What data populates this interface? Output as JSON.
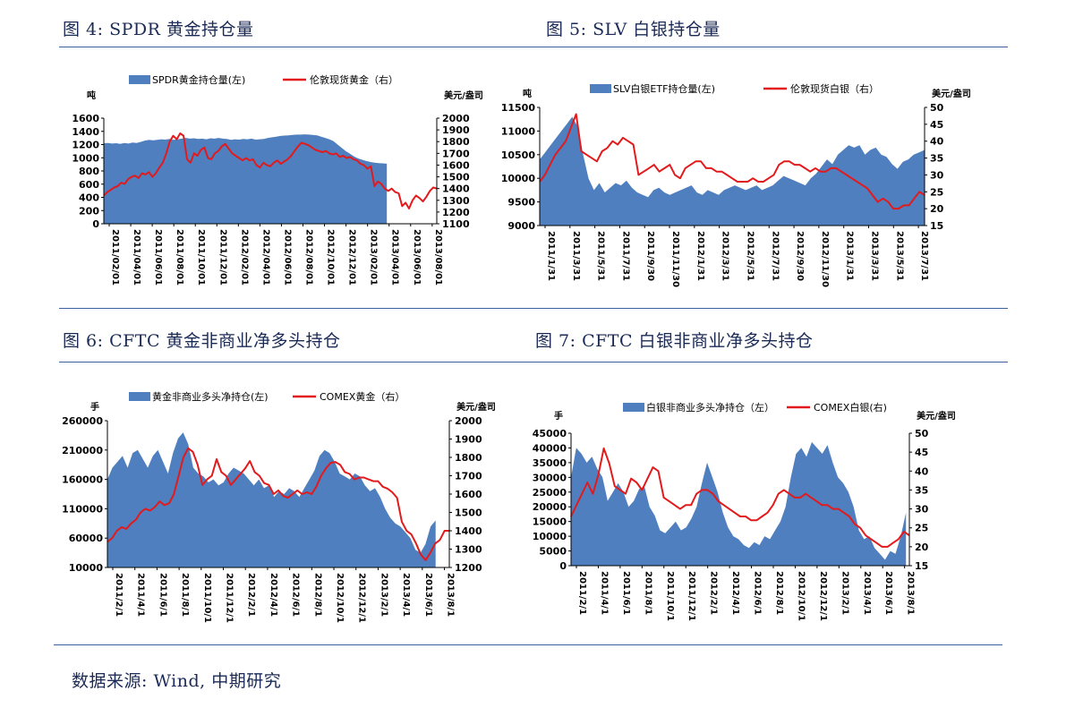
{
  "figures": {
    "f4": "图 4: SPDR 黄金持仓量",
    "f5": "图 5: SLV 白银持仓量",
    "f6": "图 6: CFTC 黄金非商业净多头持仓",
    "f7": "图 7: CFTC 白银非商业净多头持仓"
  },
  "source": "数据来源: Wind, 中期研究",
  "colors": {
    "area": "#4f7fbf",
    "line": "#e31a1c",
    "title": "#1b2a55",
    "rule": "#3c5fa0"
  },
  "chart_data": [
    {
      "type": "area",
      "legend": [
        "SPDR黄金持仓量(左)",
        "伦敦现货黄金（右）"
      ],
      "y_unit": "吨",
      "y2_unit": "美元/盎司",
      "ylim": [
        0,
        1600
      ],
      "y2lim": [
        1100,
        2000
      ],
      "y_ticks": [
        "0",
        "200",
        "400",
        "600",
        "800",
        "1000",
        "1200",
        "1400",
        "1600"
      ],
      "y2_ticks": [
        "1100",
        "1200",
        "1300",
        "1400",
        "1500",
        "1600",
        "1700",
        "1800",
        "1900",
        "2000"
      ],
      "x_ticks": [
        "2011/02/01",
        "2011/04/01",
        "2011/06/01",
        "2011/08/01",
        "2011/10/01",
        "2011/12/01",
        "2012/02/01",
        "2012/04/01",
        "2012/06/01",
        "2012/08/01",
        "2012/10/01",
        "2012/12/01",
        "2013/02/01",
        "2013/04/01",
        "2013/06/01",
        "2013/08/01"
      ],
      "series": [
        {
          "name": "SPDR黄金持仓量(左)",
          "axis": "left",
          "style": "area",
          "end_t": 0.85,
          "values": [
            1220,
            1225,
            1215,
            1220,
            1210,
            1225,
            1215,
            1230,
            1225,
            1240,
            1260,
            1270,
            1265,
            1270,
            1280,
            1275,
            1285,
            1270,
            1280,
            1290,
            1300,
            1290,
            1295,
            1285,
            1290,
            1280,
            1295,
            1290,
            1300,
            1290,
            1285,
            1270,
            1280,
            1275,
            1285,
            1280,
            1290,
            1275,
            1280,
            1285,
            1300,
            1310,
            1320,
            1330,
            1335,
            1340,
            1345,
            1350,
            1350,
            1355,
            1350,
            1345,
            1340,
            1320,
            1300,
            1280,
            1250,
            1200,
            1150,
            1100,
            1060,
            1020,
            990,
            970,
            950,
            935,
            925,
            920,
            915,
            910
          ]
        },
        {
          "name": "伦敦现货黄金（右）",
          "axis": "right",
          "style": "line",
          "end_t": 1.0,
          "values": [
            1340,
            1370,
            1390,
            1410,
            1420,
            1450,
            1440,
            1480,
            1500,
            1510,
            1490,
            1530,
            1520,
            1540,
            1500,
            1530,
            1580,
            1620,
            1700,
            1800,
            1850,
            1820,
            1870,
            1850,
            1650,
            1620,
            1700,
            1680,
            1730,
            1750,
            1660,
            1650,
            1700,
            1720,
            1760,
            1780,
            1740,
            1700,
            1680,
            1660,
            1640,
            1660,
            1640,
            1650,
            1600,
            1580,
            1620,
            1600,
            1590,
            1620,
            1640,
            1610,
            1630,
            1650,
            1680,
            1720,
            1760,
            1790,
            1780,
            1770,
            1750,
            1730,
            1720,
            1710,
            1720,
            1700,
            1690,
            1700,
            1670,
            1680,
            1660,
            1670,
            1650,
            1640,
            1610,
            1600,
            1570,
            1590,
            1420,
            1460,
            1440,
            1400,
            1380,
            1400,
            1370,
            1360,
            1250,
            1280,
            1230,
            1300,
            1340,
            1320,
            1290,
            1330,
            1380,
            1410,
            1400
          ]
        }
      ]
    },
    {
      "type": "area",
      "legend": [
        "SLV白银ETF持仓量(左)",
        "伦敦现货白银（右）"
      ],
      "y_unit": "吨",
      "y2_unit": "美元/盎司",
      "ylim": [
        9000,
        11500
      ],
      "y2lim": [
        15,
        50
      ],
      "y_ticks": [
        "9000",
        "9500",
        "10000",
        "10500",
        "11000",
        "11500"
      ],
      "y2_ticks": [
        "15",
        "20",
        "25",
        "30",
        "35",
        "40",
        "45",
        "50"
      ],
      "x_ticks": [
        "2011/1/31",
        "2011/3/31",
        "2011/5/31",
        "2011/7/31",
        "2011/9/30",
        "2011/11/30",
        "2012/1/31",
        "2012/3/31",
        "2012/5/31",
        "2012/7/31",
        "2012/9/30",
        "2012/11/30",
        "2013/1/31",
        "2013/3/31",
        "2013/5/31",
        "2013/7/31"
      ],
      "series": [
        {
          "name": "SLV白银ETF持仓量(左)",
          "axis": "left",
          "style": "area",
          "end_t": 1.0,
          "values": [
            10400,
            10550,
            10700,
            10850,
            11000,
            11150,
            11300,
            11100,
            10500,
            10000,
            9750,
            9900,
            9700,
            9800,
            9900,
            9850,
            9950,
            9800,
            9700,
            9650,
            9600,
            9750,
            9800,
            9700,
            9650,
            9700,
            9750,
            9800,
            9850,
            9700,
            9650,
            9750,
            9700,
            9650,
            9750,
            9800,
            9850,
            9800,
            9750,
            9800,
            9850,
            9750,
            9800,
            9850,
            9950,
            10050,
            10000,
            9950,
            9900,
            9850,
            10000,
            10100,
            10250,
            10400,
            10300,
            10500,
            10600,
            10700,
            10650,
            10700,
            10500,
            10600,
            10650,
            10500,
            10450,
            10300,
            10200,
            10350,
            10400,
            10500,
            10550,
            10600
          ]
        },
        {
          "name": "伦敦现货白银（右）",
          "axis": "right",
          "style": "line",
          "end_t": 1.0,
          "values": [
            28,
            30,
            33,
            36,
            38,
            40,
            44,
            48,
            37,
            36,
            35,
            34,
            37,
            38,
            40,
            39,
            41,
            40,
            39,
            30,
            31,
            32,
            33,
            31,
            32,
            33,
            30,
            29,
            32,
            33,
            34,
            34,
            32,
            32,
            31,
            31,
            30,
            29,
            28,
            28,
            28,
            29,
            28,
            28,
            29,
            30,
            33,
            34,
            34,
            33,
            33,
            32,
            31,
            32,
            31,
            31,
            32,
            32,
            31,
            30,
            29,
            28,
            27,
            26,
            24,
            22,
            23,
            22,
            20,
            20,
            21,
            21,
            23,
            25,
            24
          ]
        }
      ]
    },
    {
      "type": "area",
      "legend": [
        "黄金非商业多头净持仓(左)",
        "COMEX黄金（右）"
      ],
      "y_unit": "手",
      "y2_unit": "美元/盎司",
      "ylim": [
        10000,
        260000
      ],
      "y2lim": [
        1200,
        2000
      ],
      "y_ticks": [
        "10000",
        "60000",
        "110000",
        "160000",
        "210000",
        "260000"
      ],
      "y2_ticks": [
        "1200",
        "1300",
        "1400",
        "1500",
        "1600",
        "1700",
        "1800",
        "1900",
        "2000"
      ],
      "x_ticks": [
        "2011/2/1",
        "2011/4/1",
        "2011/6/1",
        "2011/8/1",
        "2011/10/1",
        "2011/12/1",
        "2012/2/1",
        "2012/4/1",
        "2012/6/1",
        "2012/8/1",
        "2012/10/1",
        "2012/12/1",
        "2013/2/1",
        "2013/4/1",
        "2013/6/1",
        "2013/8/1"
      ],
      "series": [
        {
          "name": "黄金非商业多头净持仓(左)",
          "axis": "left",
          "style": "area",
          "end_t": 0.96,
          "values": [
            160000,
            180000,
            190000,
            200000,
            180000,
            205000,
            210000,
            195000,
            180000,
            200000,
            210000,
            190000,
            170000,
            205000,
            230000,
            240000,
            220000,
            180000,
            170000,
            165000,
            155000,
            160000,
            150000,
            155000,
            170000,
            180000,
            175000,
            170000,
            160000,
            150000,
            160000,
            145000,
            150000,
            130000,
            140000,
            135000,
            145000,
            140000,
            130000,
            145000,
            160000,
            175000,
            200000,
            210000,
            205000,
            190000,
            170000,
            165000,
            160000,
            170000,
            165000,
            150000,
            140000,
            145000,
            130000,
            110000,
            95000,
            85000,
            80000,
            70000,
            60000,
            40000,
            35000,
            50000,
            80000,
            90000
          ]
        },
        {
          "name": "COMEX黄金（右）",
          "axis": "right",
          "style": "line",
          "end_t": 1.0,
          "values": [
            1340,
            1360,
            1400,
            1420,
            1410,
            1440,
            1460,
            1500,
            1520,
            1510,
            1530,
            1560,
            1540,
            1550,
            1600,
            1700,
            1800,
            1850,
            1830,
            1760,
            1650,
            1680,
            1700,
            1790,
            1720,
            1700,
            1650,
            1680,
            1710,
            1740,
            1780,
            1720,
            1700,
            1660,
            1650,
            1600,
            1620,
            1590,
            1580,
            1600,
            1620,
            1600,
            1610,
            1600,
            1640,
            1700,
            1740,
            1770,
            1775,
            1760,
            1720,
            1710,
            1680,
            1690,
            1690,
            1680,
            1670,
            1670,
            1640,
            1630,
            1610,
            1580,
            1450,
            1400,
            1380,
            1330,
            1270,
            1240,
            1280,
            1330,
            1350,
            1400,
            1400
          ]
        }
      ]
    },
    {
      "type": "area",
      "legend": [
        "白银非商业多头净持仓（左）",
        "COMEX白银(右)"
      ],
      "y_unit": "手",
      "y2_unit": "美元/盎司",
      "ylim": [
        0,
        45000
      ],
      "y2lim": [
        15,
        50
      ],
      "y_ticks": [
        "0",
        "5000",
        "10000",
        "15000",
        "20000",
        "25000",
        "30000",
        "35000",
        "40000",
        "45000"
      ],
      "y2_ticks": [
        "15",
        "20",
        "25",
        "30",
        "35",
        "40",
        "45",
        "50"
      ],
      "x_ticks": [
        "2011/2/1",
        "2011/4/1",
        "2011/6/1",
        "2011/8/1",
        "2011/10/1",
        "2011/12/1",
        "2012/2/1",
        "2012/4/1",
        "2012/6/1",
        "2012/8/1",
        "2012/10/1",
        "2012/12/1",
        "2013/2/1",
        "2013/4/1",
        "2013/6/1",
        "2013/8/1"
      ],
      "series": [
        {
          "name": "白银非商业多头净持仓（左）",
          "axis": "left",
          "style": "area",
          "end_t": 0.99,
          "values": [
            30000,
            40000,
            38000,
            35000,
            37000,
            33000,
            30000,
            22000,
            25000,
            28000,
            25000,
            20000,
            22000,
            26000,
            27000,
            20000,
            17000,
            12000,
            11000,
            13000,
            15000,
            12000,
            13000,
            16000,
            20000,
            28000,
            35000,
            30000,
            25000,
            18000,
            13000,
            10000,
            9000,
            7000,
            6000,
            8000,
            7000,
            10000,
            9000,
            12000,
            15000,
            20000,
            30000,
            38000,
            40000,
            37000,
            42000,
            40000,
            38000,
            41000,
            35000,
            30000,
            28000,
            25000,
            20000,
            12000,
            9000,
            10000,
            6000,
            4000,
            2000,
            5000,
            4000,
            10000,
            18000
          ]
        },
        {
          "name": "COMEX白银(右)",
          "axis": "right",
          "style": "line",
          "end_t": 1.0,
          "values": [
            28,
            31,
            34,
            37,
            34,
            39,
            46,
            42,
            36,
            35,
            34,
            38,
            37,
            35,
            38,
            41,
            40,
            33,
            32,
            31,
            30,
            31,
            31,
            34,
            35,
            35,
            34,
            32,
            31,
            30,
            29,
            28,
            28,
            27,
            27,
            28,
            29,
            31,
            34,
            35,
            34,
            33,
            33,
            34,
            33,
            32,
            31,
            31,
            30,
            30,
            29,
            28,
            26,
            25,
            23,
            22,
            21,
            20,
            20,
            21,
            22,
            24,
            23
          ]
        }
      ]
    }
  ]
}
